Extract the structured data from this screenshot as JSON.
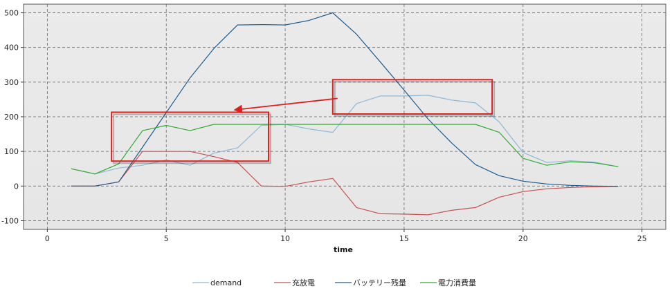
{
  "chart_data": {
    "type": "line",
    "title": "",
    "xlabel": "time",
    "ylabel": "",
    "xlim": [
      -1,
      26
    ],
    "ylim": [
      -125,
      525
    ],
    "x_ticks": [
      0,
      5,
      10,
      15,
      20,
      25
    ],
    "y_ticks": [
      -100,
      0,
      100,
      200,
      300,
      400,
      500
    ],
    "grid": true,
    "legend_position": "bottom",
    "x": [
      1,
      2,
      3,
      4,
      5,
      6,
      7,
      8,
      9,
      10,
      11,
      12,
      13,
      14,
      15,
      16,
      17,
      18,
      19,
      20,
      21,
      22,
      23,
      24
    ],
    "series": [
      {
        "name": "demand",
        "color": "#8fb8d6",
        "values": [
          50,
          35,
          52,
          60,
          75,
          60,
          95,
          110,
          175,
          178,
          165,
          155,
          238,
          260,
          260,
          262,
          248,
          240,
          185,
          97,
          68,
          73,
          69,
          56
        ]
      },
      {
        "name": "充放電",
        "color": "#c8504f",
        "values": [
          0,
          0,
          12,
          100,
          100,
          100,
          85,
          68,
          0,
          -1,
          12,
          22,
          -62,
          -80,
          -81,
          -83,
          -70,
          -62,
          -32,
          -16,
          -8,
          -4,
          -2,
          -1
        ]
      },
      {
        "name": "バッテリー残量",
        "color": "#1f5d8e",
        "values": [
          0,
          0,
          12,
          112,
          212,
          312,
          397,
          465,
          466,
          465,
          478,
          500,
          438,
          358,
          277,
          194,
          124,
          62,
          30,
          14,
          6,
          2,
          0,
          -1
        ]
      },
      {
        "name": "電力消費量",
        "color": "#33a933",
        "values": [
          50,
          35,
          64,
          160,
          175,
          160,
          178,
          178,
          178,
          178,
          178,
          178,
          178,
          178,
          178,
          178,
          178,
          178,
          155,
          80,
          60,
          70,
          67,
          56
        ]
      }
    ],
    "annotations": [
      {
        "type": "box",
        "color": "#e01e1e",
        "x0": 2.7,
        "x1": 9.3,
        "y0": 72,
        "y1": 213
      },
      {
        "type": "box",
        "color": "#e01e1e",
        "x0": 12.0,
        "x1": 18.7,
        "y0": 208,
        "y1": 307
      },
      {
        "type": "arrow",
        "color": "#e01e1e",
        "from": [
          12.2,
          253
        ],
        "to": [
          7.9,
          220
        ]
      }
    ]
  }
}
